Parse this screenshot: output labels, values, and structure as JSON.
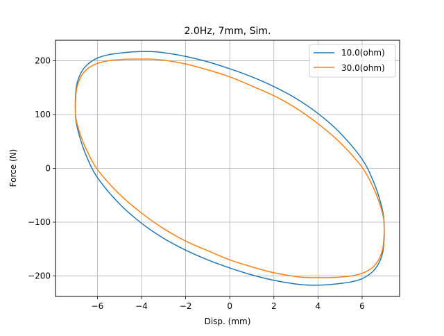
{
  "chart_data": {
    "type": "line",
    "title": "2.0Hz, 7mm, Sim.",
    "xlabel": "Disp. (mm)",
    "ylabel": "Force (N)",
    "xlim": [
      -7.9,
      7.7
    ],
    "ylim": [
      -238,
      238
    ],
    "xticks": [
      -6,
      -4,
      -2,
      0,
      2,
      4,
      6
    ],
    "xtick_labels": [
      "−6",
      "−4",
      "−2",
      "0",
      "2",
      "4",
      "6"
    ],
    "yticks": [
      -200,
      -100,
      0,
      100,
      200
    ],
    "ytick_labels": [
      "−200",
      "−100",
      "0",
      "100",
      "200"
    ],
    "grid": true,
    "legend_position": "top-right",
    "series": [
      {
        "name": "10.0(ohm)",
        "color": "#1f77b4",
        "x": [
          -7.0,
          -6.94,
          -6.75,
          -6.45,
          -6.0,
          -5.5,
          -5.0,
          -4.5,
          -4.0,
          -3.6,
          -3.0,
          -2.0,
          -1.0,
          0.0,
          1.0,
          2.0,
          3.0,
          4.0,
          5.0,
          6.0,
          6.5,
          6.8,
          6.97,
          7.0,
          7.0,
          6.94,
          6.75,
          6.45,
          6.0,
          5.5,
          5.0,
          4.5,
          4.0,
          3.6,
          3.0,
          2.0,
          1.0,
          0.0,
          -1.0,
          -2.0,
          -3.0,
          -4.0,
          -5.0,
          -6.0,
          -6.5,
          -6.8,
          -6.97,
          -7.0,
          -7.0
        ],
        "y": [
          130,
          155,
          177,
          193,
          205,
          211,
          214,
          216,
          217,
          217,
          215,
          208,
          198,
          185,
          170,
          152,
          130,
          102,
          66,
          17,
          -23,
          -58,
          -88,
          -110,
          -130,
          -155,
          -177,
          -193,
          -205,
          -211,
          -214,
          -216,
          -217,
          -217,
          -215,
          -208,
          -198,
          -185,
          -170,
          -152,
          -130,
          -102,
          -66,
          -17,
          23,
          58,
          88,
          110,
          130
        ]
      },
      {
        "name": "30.0(ohm)",
        "color": "#ff7f0e",
        "x": [
          -7.0,
          -6.94,
          -6.75,
          -6.45,
          -6.0,
          -5.5,
          -5.0,
          -4.5,
          -4.0,
          -3.6,
          -3.0,
          -2.0,
          -1.0,
          0.0,
          1.0,
          2.0,
          3.0,
          4.0,
          5.0,
          6.0,
          6.5,
          6.8,
          6.97,
          7.0,
          7.0,
          6.94,
          6.75,
          6.45,
          6.0,
          5.5,
          5.0,
          4.5,
          4.0,
          3.6,
          3.0,
          2.0,
          1.0,
          0.0,
          -1.0,
          -2.0,
          -3.0,
          -4.0,
          -5.0,
          -6.0,
          -6.5,
          -6.8,
          -6.97,
          -7.0,
          -7.0
        ],
        "y": [
          120,
          148,
          170,
          185,
          195,
          200,
          202,
          203,
          203,
          203,
          201,
          194,
          183,
          170,
          153,
          135,
          112,
          83,
          48,
          2,
          -35,
          -66,
          -92,
          -110,
          -120,
          -148,
          -170,
          -185,
          -195,
          -200,
          -202,
          -203,
          -203,
          -203,
          -201,
          -194,
          -183,
          -170,
          -153,
          -135,
          -112,
          -83,
          -48,
          -2,
          35,
          66,
          92,
          110,
          120
        ]
      }
    ]
  }
}
